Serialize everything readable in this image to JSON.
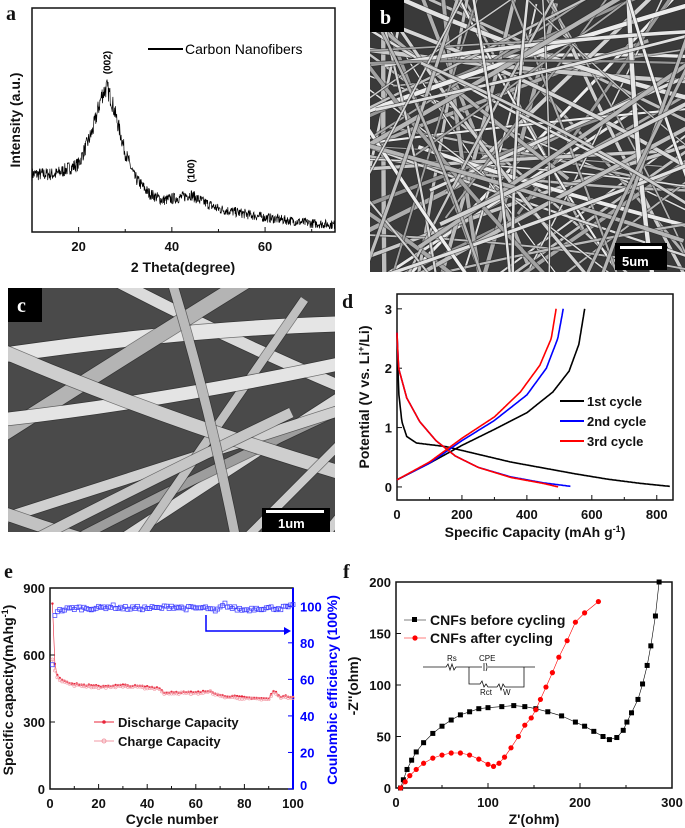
{
  "panels": {
    "a": {
      "label": "a"
    },
    "b": {
      "label": "b",
      "scale_bar": "5um"
    },
    "c": {
      "label": "c",
      "scale_bar": "1um"
    },
    "d": {
      "label": "d"
    },
    "e": {
      "label": "e"
    },
    "f": {
      "label": "f"
    }
  },
  "chart_data": [
    {
      "panel": "a",
      "type": "line",
      "xlabel": "2 Theta(degree)",
      "ylabel": "Intensity (a.u.)",
      "xlim": [
        10,
        75
      ],
      "ylim": [
        0,
        1.55
      ],
      "xticks": [
        20,
        40,
        60
      ],
      "yticks": [],
      "legend": "top-right",
      "series": [
        {
          "name": "Carbon Nanofibers",
          "color": "#000000",
          "x": [
            10,
            15,
            20,
            23,
            25,
            26,
            27,
            28,
            30,
            32,
            35,
            38,
            42,
            44,
            46,
            50,
            55,
            60,
            65,
            70,
            75
          ],
          "y": [
            0.4,
            0.4,
            0.47,
            0.7,
            0.95,
            1.0,
            0.92,
            0.8,
            0.55,
            0.38,
            0.27,
            0.22,
            0.24,
            0.26,
            0.22,
            0.16,
            0.13,
            0.1,
            0.08,
            0.06,
            0.05
          ]
        }
      ],
      "annotations": [
        {
          "text": "(002)",
          "x": 26,
          "y": 1.05
        },
        {
          "text": "(100)",
          "x": 44,
          "y": 0.3
        }
      ]
    },
    {
      "panel": "d",
      "type": "line",
      "xlabel": "Specific Capacity (mAh g",
      "xlabel_sup": "-1",
      "xlabel_end": ")",
      "ylabel": "Potential (V vs. Li",
      "ylabel_sup": "+",
      "ylabel_end": "/Li)",
      "xlim": [
        0,
        850
      ],
      "ylim": [
        -0.22,
        3.25
      ],
      "xticks": [
        0,
        200,
        400,
        600,
        800
      ],
      "yticks": [
        0,
        1,
        2,
        3
      ],
      "legend": "center-right",
      "series": [
        {
          "name": "1st cycle",
          "color": "#000000",
          "discharge": {
            "x": [
              0,
              5,
              15,
              30,
              60,
              150,
              250,
              350,
              450,
              550,
              650,
              750,
              840
            ],
            "y": [
              2.6,
              1.6,
              1.1,
              0.85,
              0.74,
              0.68,
              0.55,
              0.42,
              0.32,
              0.22,
              0.13,
              0.06,
              0.01
            ]
          },
          "charge": {
            "x": [
              0,
              100,
              200,
              300,
              400,
              480,
              530,
              560,
              578
            ],
            "y": [
              0.12,
              0.4,
              0.7,
              0.97,
              1.25,
              1.6,
              1.95,
              2.4,
              3.0
            ]
          }
        },
        {
          "name": "2nd cycle",
          "color": "#0000ff",
          "discharge": {
            "x": [
              0,
              5,
              30,
              70,
              120,
              180,
              250,
              350,
              450,
              535
            ],
            "y": [
              2.6,
              2.0,
              1.5,
              1.1,
              0.78,
              0.52,
              0.33,
              0.17,
              0.07,
              0.01
            ]
          },
          "charge": {
            "x": [
              0,
              100,
              200,
              300,
              400,
              460,
              495,
              512
            ],
            "y": [
              0.12,
              0.4,
              0.78,
              1.12,
              1.55,
              2.0,
              2.5,
              3.0
            ]
          }
        },
        {
          "name": "3rd cycle",
          "color": "#ff0000",
          "discharge": {
            "x": [
              0,
              5,
              30,
              70,
              120,
              180,
              250,
              350,
              450,
              497
            ],
            "y": [
              2.6,
              2.0,
              1.5,
              1.1,
              0.78,
              0.52,
              0.33,
              0.16,
              0.06,
              0.0
            ]
          },
          "charge": {
            "x": [
              0,
              100,
              200,
              300,
              380,
              440,
              475,
              490
            ],
            "y": [
              0.12,
              0.42,
              0.82,
              1.18,
              1.6,
              2.05,
              2.5,
              3.0
            ]
          }
        }
      ]
    },
    {
      "panel": "e",
      "type": "scatter",
      "xlabel": "Cycle number",
      "ylabel": "Specific capacity(mAhg",
      "ylabel_sup": "-1",
      "ylabel_end": ")",
      "y2label": "Coulombic efficiency (100%)",
      "xlim": [
        0,
        100
      ],
      "ylim": [
        0,
        900
      ],
      "y2lim": [
        0,
        110
      ],
      "xticks": [
        0,
        20,
        40,
        60,
        80,
        100
      ],
      "yticks": [
        0,
        300,
        600,
        900
      ],
      "y2ticks": [
        0,
        20,
        40,
        60,
        80,
        100
      ],
      "legend": "bottom-left",
      "y2_color": "#0000ff",
      "series": [
        {
          "name": "Discharge Capacity",
          "color": "#e8253a",
          "axis": "left",
          "x": [
            1,
            2,
            3,
            5,
            10,
            20,
            30,
            40,
            45,
            47,
            50,
            60,
            66,
            70,
            80,
            90,
            92,
            95,
            100
          ],
          "y": [
            830,
            560,
            510,
            490,
            470,
            460,
            465,
            458,
            455,
            430,
            435,
            432,
            440,
            420,
            410,
            405,
            440,
            415,
            415
          ]
        },
        {
          "name": "Charge Capacity",
          "color": "#f29aa5",
          "axis": "left",
          "x": [
            1,
            2,
            3,
            5,
            10,
            20,
            30,
            40,
            45,
            47,
            50,
            60,
            66,
            70,
            80,
            90,
            92,
            95,
            100
          ],
          "y": [
            580,
            530,
            500,
            482,
            465,
            455,
            460,
            452,
            450,
            425,
            430,
            428,
            435,
            415,
            405,
            400,
            432,
            410,
            410
          ]
        },
        {
          "name": "Coulombic efficiency",
          "color": "#3a3aff",
          "axis": "right",
          "x": [
            1,
            2,
            3,
            5,
            10,
            15,
            20,
            25,
            30,
            35,
            40,
            45,
            50,
            55,
            60,
            65,
            68,
            70,
            72,
            75,
            80,
            85,
            90,
            95,
            100
          ],
          "y": [
            68,
            95,
            97,
            98,
            99,
            99,
            99,
            100,
            99,
            99,
            99,
            99,
            100,
            99,
            99,
            99,
            97,
            99,
            101,
            99,
            98,
            99,
            99,
            99,
            100
          ]
        }
      ]
    },
    {
      "panel": "f",
      "type": "scatter",
      "xlabel": "Z'(ohm)",
      "ylabel": "-Z''(ohm)",
      "xlim": [
        0,
        300
      ],
      "ylim": [
        0,
        200
      ],
      "xticks": [
        0,
        100,
        200,
        300
      ],
      "yticks": [
        0,
        50,
        100,
        150,
        200
      ],
      "legend": "top-left",
      "inset_circuit": {
        "labels": [
          "Rs",
          "CPE",
          "Rct",
          "W"
        ]
      },
      "series": [
        {
          "name": "CNFs before cycling",
          "color": "#000000",
          "marker": "square",
          "x": [
            5,
            8,
            12,
            17,
            22,
            30,
            40,
            50,
            60,
            70,
            80,
            90,
            100,
            115,
            128,
            140,
            152,
            165,
            180,
            195,
            205,
            215,
            225,
            232,
            240,
            247,
            251,
            256,
            263,
            268,
            273,
            277,
            282,
            286
          ],
          "y": [
            0,
            8,
            18,
            27,
            35,
            44,
            53,
            60,
            66,
            71,
            74,
            77,
            78,
            79,
            80,
            79,
            77,
            74,
            70,
            64,
            60,
            55,
            50,
            47,
            49,
            56,
            64,
            73,
            86,
            101,
            119,
            138,
            167,
            200
          ]
        },
        {
          "name": "CNFs after cycling",
          "color": "#ff0000",
          "marker": "circle",
          "x": [
            5,
            10,
            15,
            22,
            30,
            40,
            50,
            60,
            70,
            80,
            90,
            100,
            106,
            112,
            118,
            125,
            133,
            140,
            147,
            152,
            157,
            163,
            170,
            177,
            186,
            195,
            205,
            220
          ],
          "y": [
            0,
            6,
            12,
            18,
            24,
            29,
            32,
            34,
            34,
            32,
            28,
            23,
            21,
            24,
            30,
            39,
            50,
            61,
            68,
            76,
            86,
            98,
            112,
            127,
            143,
            161,
            170,
            181
          ]
        }
      ]
    }
  ]
}
